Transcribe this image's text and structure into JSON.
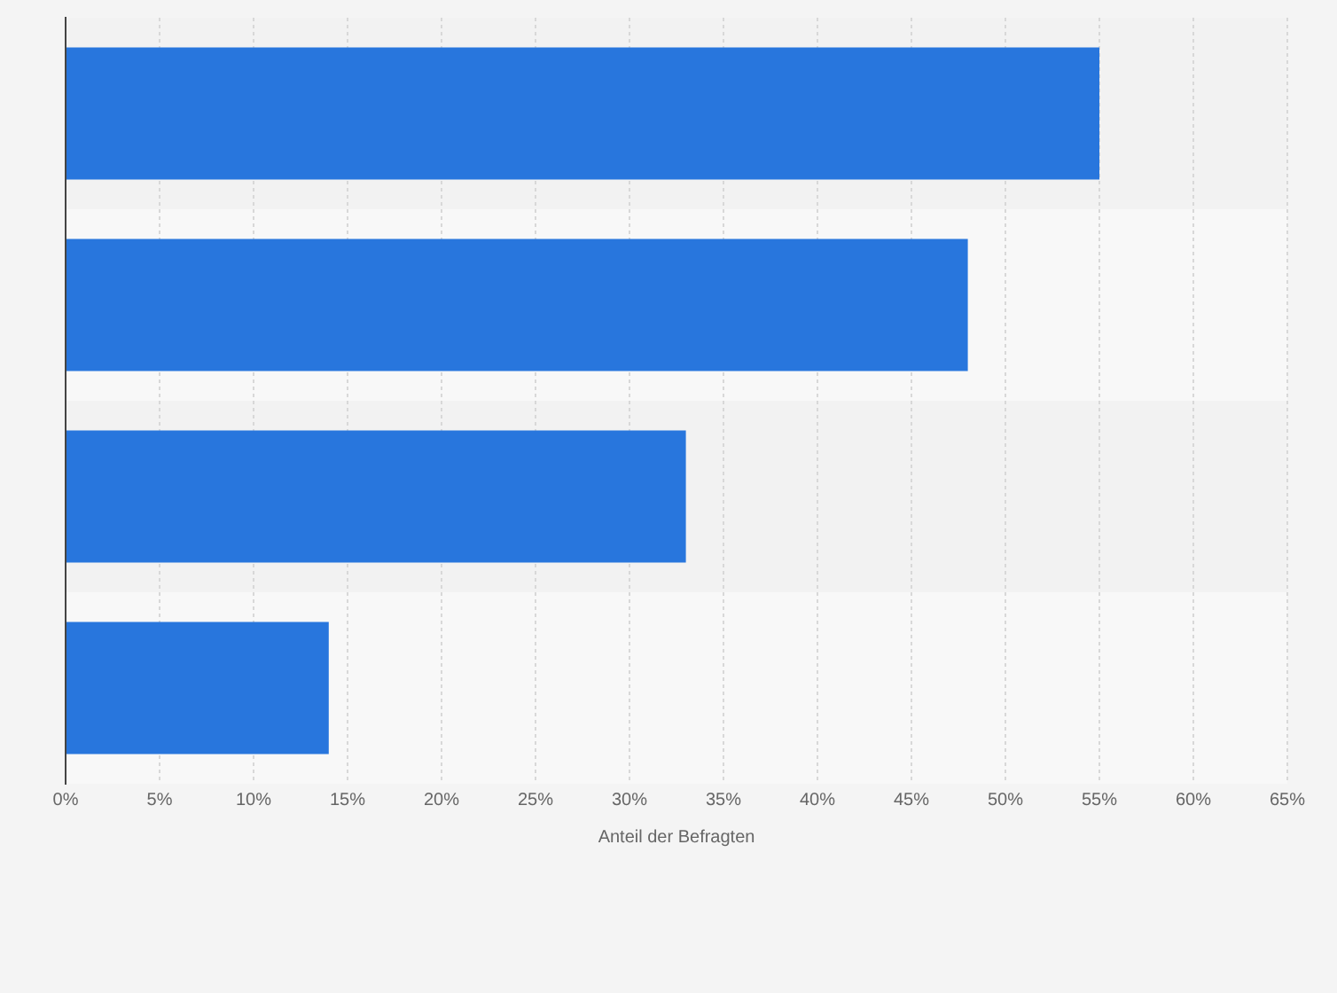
{
  "chart_data": {
    "type": "bar",
    "orientation": "horizontal",
    "xlabel": "Anteil der Befragten",
    "categories": [
      null,
      null,
      null,
      null
    ],
    "values": [
      55,
      48,
      33,
      14
    ],
    "color": "#2876dd",
    "xlim": [
      0,
      65
    ],
    "xticks": [
      {
        "value": 0,
        "label": "0%"
      },
      {
        "value": 5,
        "label": "5%"
      },
      {
        "value": 10,
        "label": "10%"
      },
      {
        "value": 15,
        "label": "15%"
      },
      {
        "value": 20,
        "label": "20%"
      },
      {
        "value": 25,
        "label": "25%"
      },
      {
        "value": 30,
        "label": "30%"
      },
      {
        "value": 35,
        "label": "35%"
      },
      {
        "value": 40,
        "label": "40%"
      },
      {
        "value": 45,
        "label": "45%"
      },
      {
        "value": 50,
        "label": "50%"
      },
      {
        "value": 55,
        "label": "55%"
      },
      {
        "value": 60,
        "label": "60%"
      },
      {
        "value": 65,
        "label": "65%"
      }
    ],
    "grid": "x",
    "legend": false
  }
}
